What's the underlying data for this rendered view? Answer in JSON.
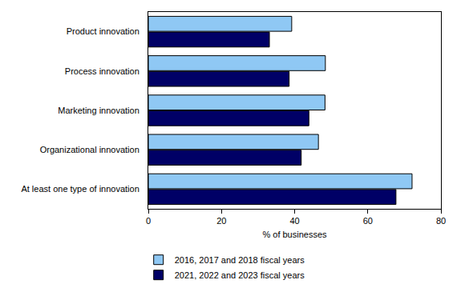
{
  "chart_data": {
    "type": "bar",
    "orientation": "horizontal",
    "categories": [
      "Product innovation",
      "Process innovation",
      "Marketing innovation",
      "Organizational innovation",
      "At least one type of innovation"
    ],
    "series": [
      {
        "name": "2016, 2017 and 2018 fiscal years",
        "color": "#8fc8f4",
        "values": [
          39.2,
          48.4,
          48.3,
          46.5,
          72.1
        ]
      },
      {
        "name": "2021, 2022 and 2023 fiscal years",
        "color": "#000066",
        "values": [
          33.1,
          38.5,
          43.9,
          41.8,
          67.7
        ]
      }
    ],
    "xlabel": "% of businesses",
    "xlim": [
      0,
      80
    ],
    "xticks": [
      0,
      20,
      40,
      60,
      80
    ],
    "grid": false,
    "legend": "bottom"
  }
}
